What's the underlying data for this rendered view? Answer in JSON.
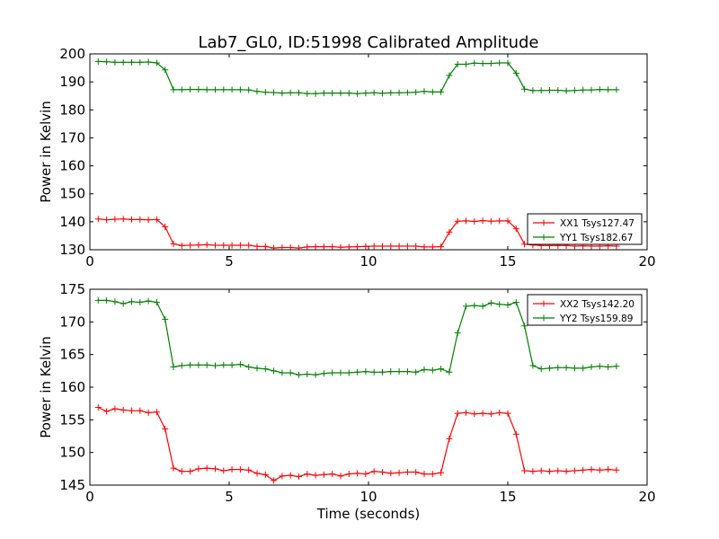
{
  "figure": {
    "title": "Lab7_GL0, ID:51998 Calibrated Amplitude",
    "xlabel": "Time (seconds)"
  },
  "chart_data": [
    {
      "type": "line",
      "ylabel": "Power in Kelvin",
      "xlim": [
        0,
        20
      ],
      "ylim": [
        130,
        200
      ],
      "xticks": [
        0,
        5,
        10,
        15,
        20
      ],
      "yticks": [
        130,
        140,
        150,
        160,
        170,
        180,
        190,
        200
      ],
      "grid": false,
      "legend_placement": "lower-right",
      "x": [
        0.3,
        0.6,
        0.9,
        1.2,
        1.5,
        1.8,
        2.1,
        2.4,
        2.7,
        3.0,
        3.3,
        3.6,
        3.9,
        4.2,
        4.5,
        4.8,
        5.1,
        5.4,
        5.7,
        6.0,
        6.3,
        6.6,
        6.9,
        7.2,
        7.5,
        7.8,
        8.1,
        8.4,
        8.7,
        9.0,
        9.3,
        9.6,
        9.9,
        10.2,
        10.5,
        10.8,
        11.1,
        11.4,
        11.7,
        12.0,
        12.3,
        12.6,
        12.9,
        13.2,
        13.5,
        13.8,
        14.1,
        14.4,
        14.7,
        15.0,
        15.3,
        15.6,
        15.9,
        16.2,
        16.5,
        16.8,
        17.1,
        17.4,
        17.7,
        18.0,
        18.3,
        18.6,
        18.9
      ],
      "series": [
        {
          "name": "XX1 Tsys127.47",
          "color": "#ff0000",
          "values": [
            141.0,
            140.7,
            140.9,
            141.0,
            140.8,
            140.8,
            140.7,
            140.8,
            138.2,
            132.1,
            131.5,
            131.6,
            131.7,
            131.8,
            131.6,
            131.6,
            131.6,
            131.6,
            131.6,
            131.2,
            131.2,
            130.6,
            130.8,
            130.8,
            130.6,
            131.0,
            131.1,
            131.1,
            131.1,
            130.9,
            131.0,
            131.1,
            131.2,
            131.3,
            131.3,
            131.3,
            131.3,
            131.3,
            131.3,
            131.0,
            131.0,
            131.1,
            136.3,
            140.2,
            140.3,
            140.1,
            140.4,
            140.2,
            140.3,
            140.3,
            137.5,
            132.0,
            131.7,
            131.5,
            131.5,
            131.5,
            131.5,
            131.3,
            131.4,
            131.3,
            131.3,
            131.4,
            131.3
          ]
        },
        {
          "name": "YY1 Tsys182.67",
          "color": "#008000",
          "values": [
            197.3,
            197.2,
            197.0,
            197.0,
            197.0,
            197.0,
            197.1,
            196.8,
            194.3,
            187.2,
            187.2,
            187.3,
            187.3,
            187.2,
            187.2,
            187.2,
            187.2,
            187.2,
            187.1,
            186.6,
            186.3,
            186.2,
            186.0,
            186.1,
            186.1,
            185.8,
            185.8,
            186.0,
            186.0,
            186.0,
            186.0,
            185.8,
            186.0,
            186.1,
            185.9,
            186.1,
            186.1,
            186.2,
            186.3,
            186.6,
            186.4,
            186.4,
            192.3,
            196.3,
            196.3,
            196.7,
            196.6,
            196.6,
            196.8,
            196.8,
            193.1,
            187.4,
            186.9,
            186.9,
            187.0,
            187.0,
            186.8,
            186.9,
            187.1,
            187.1,
            187.3,
            187.2,
            187.2
          ]
        }
      ]
    },
    {
      "type": "line",
      "ylabel": "Power in Kelvin",
      "xlabel": "Time (seconds)",
      "xlim": [
        0,
        20
      ],
      "ylim": [
        145,
        175
      ],
      "xticks": [
        0,
        5,
        10,
        15,
        20
      ],
      "yticks": [
        145,
        150,
        155,
        160,
        165,
        170,
        175
      ],
      "grid": false,
      "legend_placement": "upper-right",
      "x": [
        0.3,
        0.6,
        0.9,
        1.2,
        1.5,
        1.8,
        2.1,
        2.4,
        2.7,
        3.0,
        3.3,
        3.6,
        3.9,
        4.2,
        4.5,
        4.8,
        5.1,
        5.4,
        5.7,
        6.0,
        6.3,
        6.6,
        6.9,
        7.2,
        7.5,
        7.8,
        8.1,
        8.4,
        8.7,
        9.0,
        9.3,
        9.6,
        9.9,
        10.2,
        10.5,
        10.8,
        11.1,
        11.4,
        11.7,
        12.0,
        12.3,
        12.6,
        12.9,
        13.2,
        13.5,
        13.8,
        14.1,
        14.4,
        14.7,
        15.0,
        15.3,
        15.6,
        15.9,
        16.2,
        16.5,
        16.8,
        17.1,
        17.4,
        17.7,
        18.0,
        18.3,
        18.6,
        18.9
      ],
      "series": [
        {
          "name": "XX2 Tsys142.20",
          "color": "#ff0000",
          "values": [
            156.9,
            156.3,
            156.7,
            156.5,
            156.4,
            156.4,
            156.1,
            156.2,
            153.6,
            147.6,
            147.1,
            147.1,
            147.5,
            147.6,
            147.5,
            147.2,
            147.4,
            147.4,
            147.3,
            146.8,
            146.6,
            145.7,
            146.4,
            146.5,
            146.3,
            146.7,
            146.5,
            146.6,
            146.7,
            146.4,
            146.7,
            146.8,
            146.7,
            147.1,
            147.0,
            146.8,
            146.9,
            147.0,
            147.0,
            146.7,
            146.7,
            146.9,
            152.1,
            156.0,
            156.1,
            155.9,
            156.0,
            155.9,
            156.1,
            156.0,
            152.8,
            147.2,
            147.1,
            147.2,
            147.1,
            147.2,
            147.1,
            147.2,
            147.3,
            147.4,
            147.3,
            147.4,
            147.3
          ]
        },
        {
          "name": "YY2 Tsys159.89",
          "color": "#008000",
          "values": [
            173.3,
            173.3,
            173.1,
            172.8,
            173.1,
            173.0,
            173.2,
            173.0,
            170.4,
            163.1,
            163.3,
            163.4,
            163.4,
            163.4,
            163.3,
            163.4,
            163.4,
            163.5,
            163.1,
            162.9,
            162.8,
            162.5,
            162.2,
            162.2,
            161.9,
            162.0,
            161.9,
            162.1,
            162.2,
            162.2,
            162.2,
            162.3,
            162.4,
            162.3,
            162.3,
            162.4,
            162.4,
            162.4,
            162.3,
            162.7,
            162.6,
            162.8,
            162.3,
            168.3,
            172.4,
            172.5,
            172.4,
            172.9,
            172.7,
            172.6,
            173.0,
            169.4,
            163.3,
            162.8,
            162.9,
            163.0,
            163.0,
            162.9,
            162.9,
            163.1,
            163.2,
            163.1,
            163.2
          ]
        }
      ]
    }
  ]
}
